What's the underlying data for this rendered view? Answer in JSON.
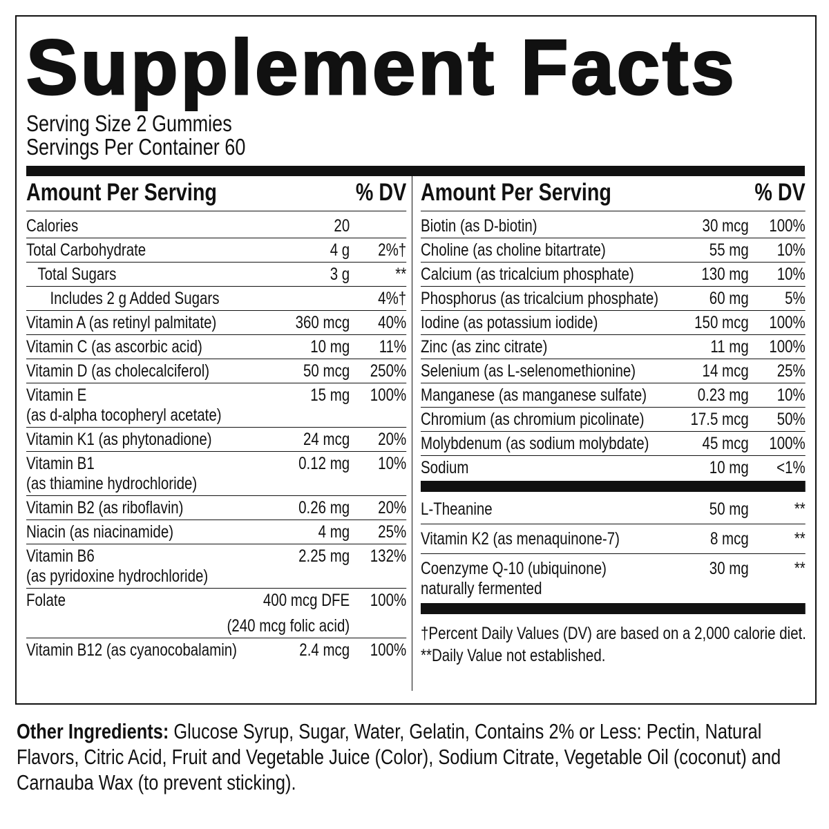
{
  "title": "Supplement Facts",
  "serving": [
    "Serving Size 2 Gummies",
    "Servings Per Container 60"
  ],
  "left": {
    "header": [
      "Amount Per Serving",
      "% DV"
    ],
    "rows": [
      {
        "name": "Calories",
        "amount": "20"
      },
      {
        "name": "Total Carbohydrate",
        "amount": "4 g",
        "dv": "2%†"
      },
      {
        "name": "Total Sugars",
        "amount": "3 g",
        "dv": "**"
      },
      {
        "name": "Includes 2 g Added Sugars",
        "dv": "4%†"
      },
      {
        "name": "Vitamin A (as retinyl palmitate)",
        "amount": "360 mcg",
        "dv": "40%"
      },
      {
        "name": "Vitamin C (as ascorbic acid)",
        "amount": "10 mg",
        "dv": "11%"
      },
      {
        "name": "Vitamin D (as cholecalciferol)",
        "amount": "50 mcg",
        "dv": "250%"
      },
      {
        "name": "Vitamin E",
        "note": "(as d-alpha tocopheryl acetate)",
        "amount": "15 mg",
        "dv": "100%"
      },
      {
        "name": "Vitamin K1 (as phytonadione)",
        "amount": "24 mcg",
        "dv": "20%"
      },
      {
        "name": "Vitamin B1",
        "note": "(as thiamine hydrochloride)",
        "amount": "0.12 mg",
        "dv": "10%"
      },
      {
        "name": "Vitamin B2 (as riboflavin)",
        "amount": "0.26 mg",
        "dv": "20%"
      },
      {
        "name": "Niacin (as niacinamide)",
        "amount": "4 mg",
        "dv": "25%"
      },
      {
        "name": "Vitamin B6",
        "note": "(as pyridoxine hydrochloride)",
        "amount": "2.25 mg",
        "dv": "132%"
      },
      {
        "name": "Folate",
        "amount": "400 mcg DFE",
        "amount_note": "(240 mcg folic acid)",
        "dv": "100%"
      },
      {
        "name": "Vitamin B12 (as cyanocobalamin)",
        "amount": "2.4 mcg",
        "dv": "100%"
      }
    ]
  },
  "right": {
    "header": [
      "Amount Per Serving",
      "% DV"
    ],
    "rows": [
      {
        "name": "Biotin (as D-biotin)",
        "amount": "30 mcg",
        "dv": "100%"
      },
      {
        "name": "Choline (as choline bitartrate)",
        "amount": "55 mg",
        "dv": "10%"
      },
      {
        "name": "Calcium (as tricalcium phosphate)",
        "amount": "130 mg",
        "dv": "10%"
      },
      {
        "name": "Phosphorus (as tricalcium phosphate)",
        "amount": "60 mg",
        "dv": "5%"
      },
      {
        "name": "Iodine (as potassium iodide)",
        "amount": "150 mcg",
        "dv": "100%"
      },
      {
        "name": "Zinc (as zinc citrate)",
        "amount": "11 mg",
        "dv": "100%"
      },
      {
        "name": "Selenium (as L-selenomethionine)",
        "amount": "14 mcg",
        "dv": "25%"
      },
      {
        "name": "Manganese (as manganese sulfate)",
        "amount": "0.23 mg",
        "dv": "10%"
      },
      {
        "name": "Chromium (as chromium picolinate)",
        "amount": "17.5 mcg",
        "dv": "50%"
      },
      {
        "name": "Molybdenum (as sodium molybdate)",
        "amount": "45 mcg",
        "dv": "100%"
      },
      {
        "name": "Sodium",
        "amount": "10 mg",
        "dv": "<1%"
      }
    ],
    "other_rows": [
      {
        "name": "L-Theanine",
        "amount": "50 mg",
        "dv": "**"
      },
      {
        "name": "Vitamin K2 (as menaquinone-7)",
        "amount": "8 mcg",
        "dv": "**"
      },
      {
        "name": "Coenzyme Q-10 (ubiquinone)",
        "note": "naturally fermented",
        "amount": "30 mg",
        "dv": "**"
      }
    ],
    "footnotes": [
      "†Percent Daily Values (DV) are based on a 2,000 calorie diet.",
      "**Daily Value not established."
    ]
  },
  "other_ingredients": {
    "label": "Other Ingredients:",
    "text": "Glucose Syrup, Sugar, Water, Gelatin, Contains 2% or Less: Pectin, Natural Flavors, Citric Acid, Fruit and Vegetable Juice (Color), Sodium Citrate, Vegetable Oil (coconut) and Carnauba Wax (to prevent sticking)."
  }
}
